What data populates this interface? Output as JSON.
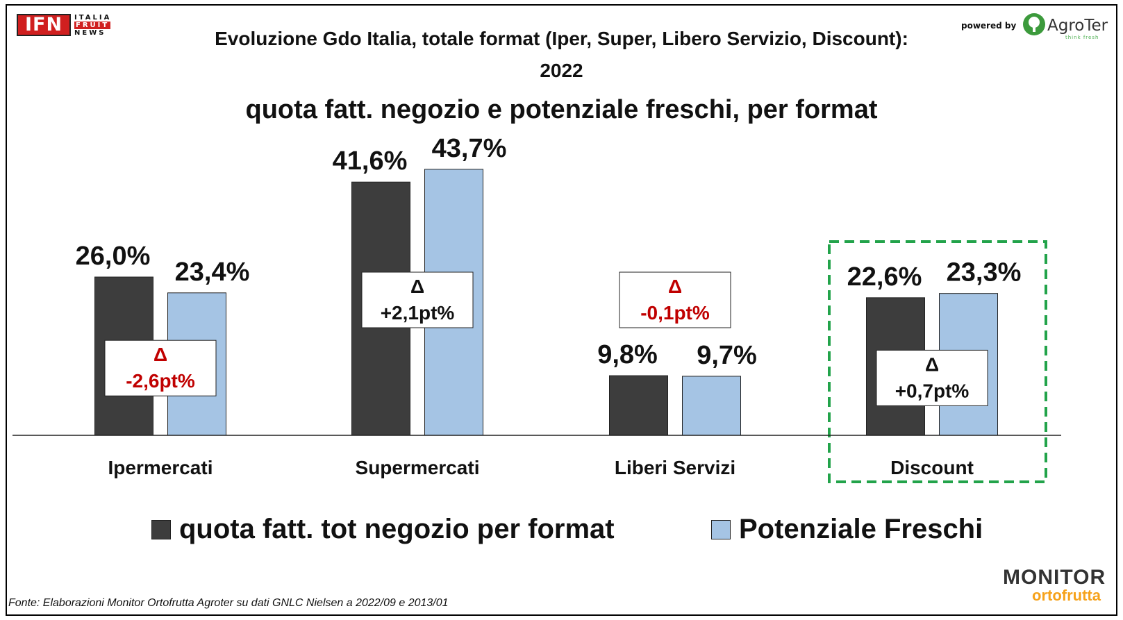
{
  "header": {
    "logo_left_text": "IFN",
    "logo_left_lines": [
      "ITALIA",
      "FRUIT",
      "NEWS"
    ],
    "powered_by": "powered by",
    "logo_right_text": "AgroTer",
    "logo_right_tagline": "think fresh"
  },
  "colors": {
    "series1": "#3d3d3d",
    "series2": "#a5c4e4",
    "delta_positive": "#111111",
    "delta_negative": "#c00000",
    "highlight_border": "#22a34a"
  },
  "chart_data": {
    "type": "bar",
    "title": "Evoluzione Gdo Italia, totale format (Iper, Super, Libero Servizio, Discount):",
    "title_line2": "2022",
    "subtitle": "quota fatt. negozio e potenziale freschi, per format",
    "categories": [
      "Ipermercati",
      "Supermercati",
      "Liberi Servizi",
      "Discount"
    ],
    "series": [
      {
        "name": "quota fatt. tot negozio per format",
        "values": [
          26.0,
          41.6,
          9.8,
          22.6
        ],
        "labels": [
          "26,0%",
          "41,6%",
          "9,8%",
          "22,6%"
        ]
      },
      {
        "name": "Potenziale Freschi",
        "values": [
          23.4,
          43.7,
          9.7,
          23.3
        ],
        "labels": [
          "23,4%",
          "43,7%",
          "9,7%",
          "23,3%"
        ]
      }
    ],
    "deltas": [
      {
        "symbol": "Δ",
        "text": "-2,6pt%",
        "sign": "negative"
      },
      {
        "symbol": "Δ",
        "text": "+2,1pt%",
        "sign": "positive"
      },
      {
        "symbol": "Δ",
        "text": "-0,1pt%",
        "sign": "negative"
      },
      {
        "symbol": "Δ",
        "text": "+0,7pt%",
        "sign": "positive"
      }
    ],
    "highlighted_category": "Discount",
    "xlabel": "",
    "ylabel": "",
    "ylim": [
      0,
      52
    ],
    "grid": false,
    "legend_position": "bottom"
  },
  "footer": {
    "source": "Fonte: Elaborazioni Monitor Ortofrutta Agroter su dati GNLC Nielsen a 2022/09 e 2013/01",
    "logo_monitor_top": "MONITOR",
    "logo_monitor_bottom": "ortofrutta"
  }
}
